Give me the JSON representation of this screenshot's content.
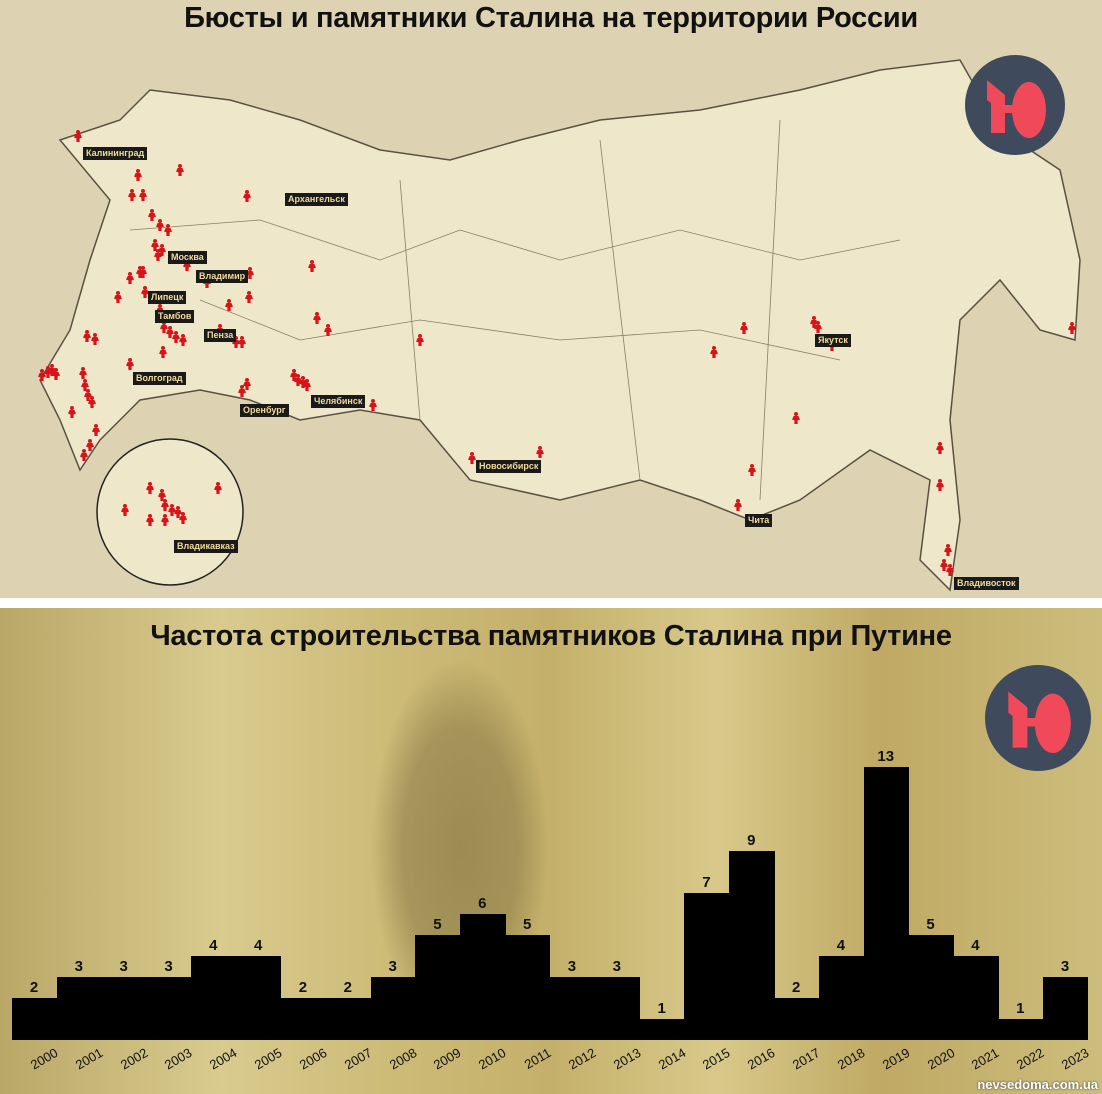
{
  "map": {
    "title": "Бюсты и памятники Сталина на территории России",
    "cities": [
      "Калининград",
      "Архангельск",
      "Москва",
      "Владимир",
      "Липецк",
      "Тамбов",
      "Пенза",
      "Волгоград",
      "Оренбург",
      "Челябинск",
      "Новосибирск",
      "Якутск",
      "Чита",
      "Владивосток",
      "Владикавказ"
    ],
    "marker_color": "#d8141b"
  },
  "logo": {
    "bg": "#3f4b5c",
    "fg": "#f04a5a"
  },
  "chart_data": {
    "type": "bar",
    "title": "Частота строительства памятников Сталина при Путине",
    "categories": [
      "2000",
      "2001",
      "2002",
      "2003",
      "2004",
      "2005",
      "2006",
      "2007",
      "2008",
      "2009",
      "2010",
      "2011",
      "2012",
      "2013",
      "2014",
      "2015",
      "2016",
      "2017",
      "2018",
      "2019",
      "2020",
      "2021",
      "2022",
      "2023"
    ],
    "values": [
      2,
      3,
      3,
      3,
      4,
      4,
      2,
      2,
      3,
      5,
      6,
      5,
      3,
      3,
      1,
      7,
      9,
      2,
      4,
      13,
      5,
      4,
      1,
      3
    ],
    "xlabel": "",
    "ylabel": "",
    "grid": false,
    "bar_color": "#000000"
  },
  "watermark": "nevsedoma.com.ua"
}
